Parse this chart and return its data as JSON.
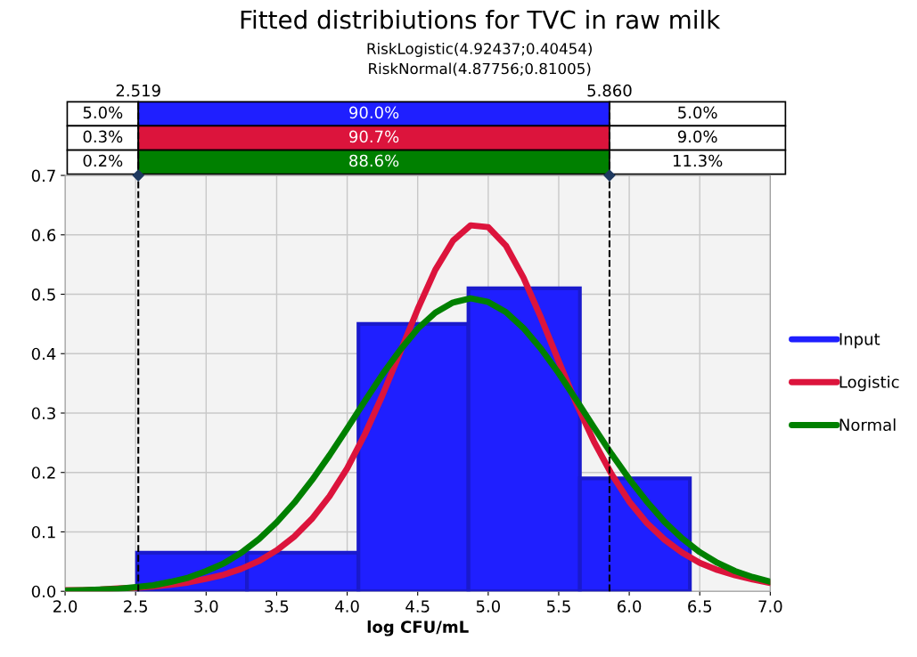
{
  "chart_data": {
    "type": "histogram",
    "title": "Fitted distribiutions for TVC in raw milk",
    "subtitle": "RiskLogistic(4.92437;0.40454)\nRiskNormal(4.87756;0.81005)",
    "xlabel": "log CFU/mL",
    "xlim": [
      2.0,
      7.0
    ],
    "xticks": [
      {
        "value": 2.0,
        "label": "2.0"
      },
      {
        "value": 2.5,
        "label": "2.5"
      },
      {
        "value": 3.0,
        "label": "3.0"
      },
      {
        "value": 3.5,
        "label": "3.5"
      },
      {
        "value": 4.0,
        "label": "4.0"
      },
      {
        "value": 4.5,
        "label": "4.5"
      },
      {
        "value": 5.0,
        "label": "5.0"
      },
      {
        "value": 5.5,
        "label": "5.5"
      },
      {
        "value": 6.0,
        "label": "6.0"
      },
      {
        "value": 6.5,
        "label": "6.5"
      },
      {
        "value": 7.0,
        "label": "7.0"
      }
    ],
    "ylim": [
      0,
      0.7
    ],
    "yticks": [
      {
        "value": 0,
        "label": "0.0"
      },
      {
        "value": 0.1,
        "label": "0.1"
      },
      {
        "value": 0.2,
        "label": "0.2"
      },
      {
        "value": 0.3,
        "label": "0.3"
      },
      {
        "value": 0.4,
        "label": "0.4"
      },
      {
        "value": 0.5,
        "label": "0.5"
      },
      {
        "value": 0.6,
        "label": "0.6"
      },
      {
        "value": 0.7,
        "label": "0.7"
      }
    ],
    "grid": true,
    "legend": "right",
    "series": [
      {
        "name": "Input",
        "color": "#1f1fff",
        "bins": [
          2.51,
          3.29,
          4.08,
          4.86,
          5.65,
          6.43
        ],
        "values": [
          0.065,
          0.065,
          0.45,
          0.51,
          0.19
        ]
      },
      {
        "name": "Logistic",
        "type": "line",
        "color": "#dc143c",
        "x": [
          2.0,
          2.125,
          2.25,
          2.375,
          2.5,
          2.625,
          2.75,
          2.875,
          3.0,
          3.125,
          3.25,
          3.375,
          3.5,
          3.625,
          3.75,
          3.875,
          4.0,
          4.125,
          4.25,
          4.375,
          4.5,
          4.625,
          4.75,
          4.875,
          5.0,
          5.125,
          5.25,
          5.375,
          5.5,
          5.625,
          5.75,
          5.875,
          6.0,
          6.125,
          6.25,
          6.375,
          6.5,
          6.625,
          6.75,
          6.875,
          7.0
        ],
        "values": [
          0.002,
          0.002,
          0.003,
          0.005,
          0.006,
          0.008,
          0.011,
          0.015,
          0.021,
          0.028,
          0.038,
          0.051,
          0.069,
          0.092,
          0.122,
          0.16,
          0.207,
          0.264,
          0.33,
          0.402,
          0.475,
          0.541,
          0.59,
          0.616,
          0.613,
          0.582,
          0.528,
          0.46,
          0.387,
          0.316,
          0.252,
          0.197,
          0.151,
          0.115,
          0.087,
          0.065,
          0.048,
          0.036,
          0.027,
          0.02,
          0.014
        ]
      },
      {
        "name": "Normal",
        "type": "line",
        "color": "#008000",
        "x": [
          2.0,
          2.125,
          2.25,
          2.375,
          2.5,
          2.625,
          2.75,
          2.875,
          3.0,
          3.125,
          3.25,
          3.375,
          3.5,
          3.625,
          3.75,
          3.875,
          4.0,
          4.125,
          4.25,
          4.375,
          4.5,
          4.625,
          4.75,
          4.875,
          5.0,
          5.125,
          5.25,
          5.375,
          5.5,
          5.625,
          5.75,
          5.875,
          6.0,
          6.125,
          6.25,
          6.375,
          6.5,
          6.625,
          6.75,
          6.875,
          7.0
        ],
        "values": [
          0.001,
          0.002,
          0.003,
          0.004,
          0.007,
          0.01,
          0.016,
          0.023,
          0.034,
          0.047,
          0.065,
          0.088,
          0.116,
          0.149,
          0.187,
          0.229,
          0.274,
          0.32,
          0.365,
          0.406,
          0.442,
          0.469,
          0.486,
          0.493,
          0.487,
          0.47,
          0.443,
          0.408,
          0.367,
          0.322,
          0.276,
          0.231,
          0.189,
          0.151,
          0.117,
          0.089,
          0.066,
          0.048,
          0.034,
          0.024,
          0.016
        ]
      }
    ],
    "ref_lines": [
      {
        "axis": "x",
        "value": 2.519,
        "label": "2.519",
        "color": "#000000",
        "line_style": "dashed"
      },
      {
        "axis": "x",
        "value": 5.86,
        "label": "5.860",
        "color": "#000000",
        "line_style": "dashed"
      }
    ],
    "annotations": [
      "5.0%",
      "90.0%",
      "5.0%",
      "0.3%",
      "90.7%",
      "9.0%",
      "0.2%",
      "88.6%",
      "11.3%"
    ]
  }
}
